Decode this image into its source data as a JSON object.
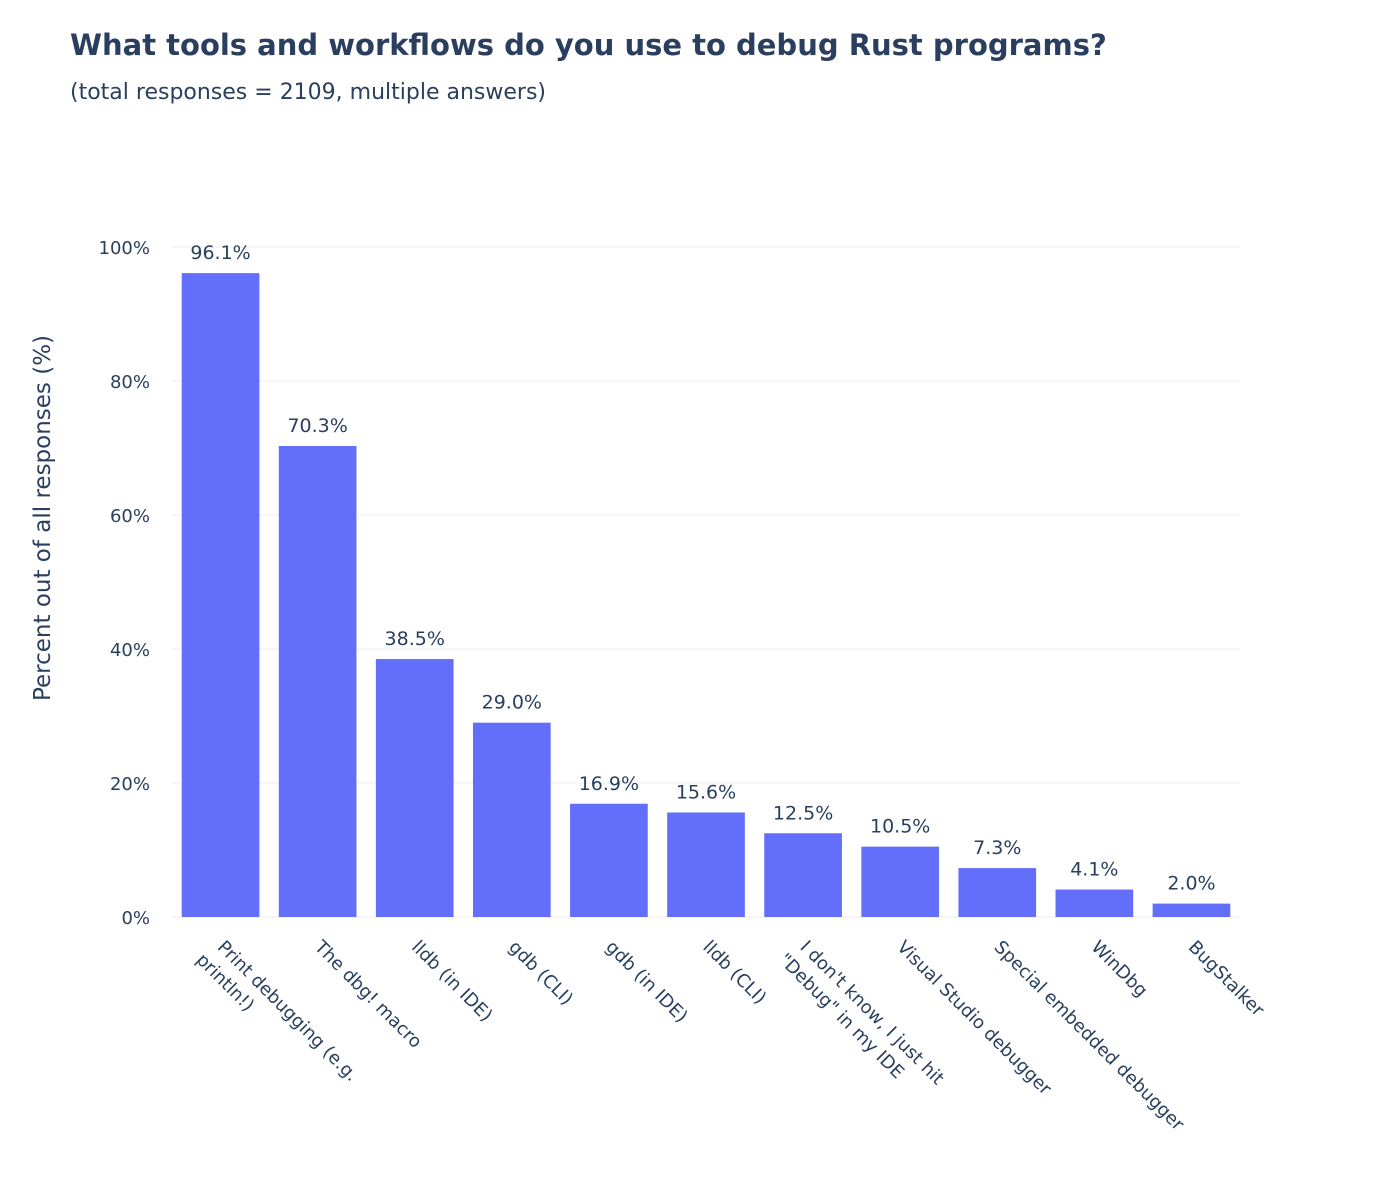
{
  "chart_data": {
    "type": "bar",
    "title": "What tools and workflows do you use to debug Rust programs?",
    "subtitle": "(total responses = 2109, multiple answers)",
    "ylabel": "Percent out of all responses (%)",
    "xlabel": "",
    "ylim": [
      0,
      100
    ],
    "yticks": [
      0,
      20,
      40,
      60,
      80,
      100
    ],
    "ytick_suffix": "%",
    "grid": true,
    "bar_color": "#636efa",
    "categories": [
      [
        "Print debugging (e.g.",
        "println!)"
      ],
      [
        "The dbg! macro"
      ],
      [
        "lldb (in IDE)"
      ],
      [
        "gdb (CLI)"
      ],
      [
        "gdb (in IDE)"
      ],
      [
        "lldb (CLI)"
      ],
      [
        "I don't know, I just hit",
        "\"Debug\" in my IDE"
      ],
      [
        "Visual Studio debugger"
      ],
      [
        "Special embedded debugger"
      ],
      [
        "WinDbg"
      ],
      [
        "BugStalker"
      ]
    ],
    "values": [
      96.1,
      70.3,
      38.5,
      29.0,
      16.9,
      15.6,
      12.5,
      10.5,
      7.3,
      4.1,
      2.0
    ],
    "value_labels": [
      "96.1%",
      "70.3%",
      "38.5%",
      "29.0%",
      "16.9%",
      "15.6%",
      "12.5%",
      "10.5%",
      "7.3%",
      "4.1%",
      "2.0%"
    ]
  }
}
